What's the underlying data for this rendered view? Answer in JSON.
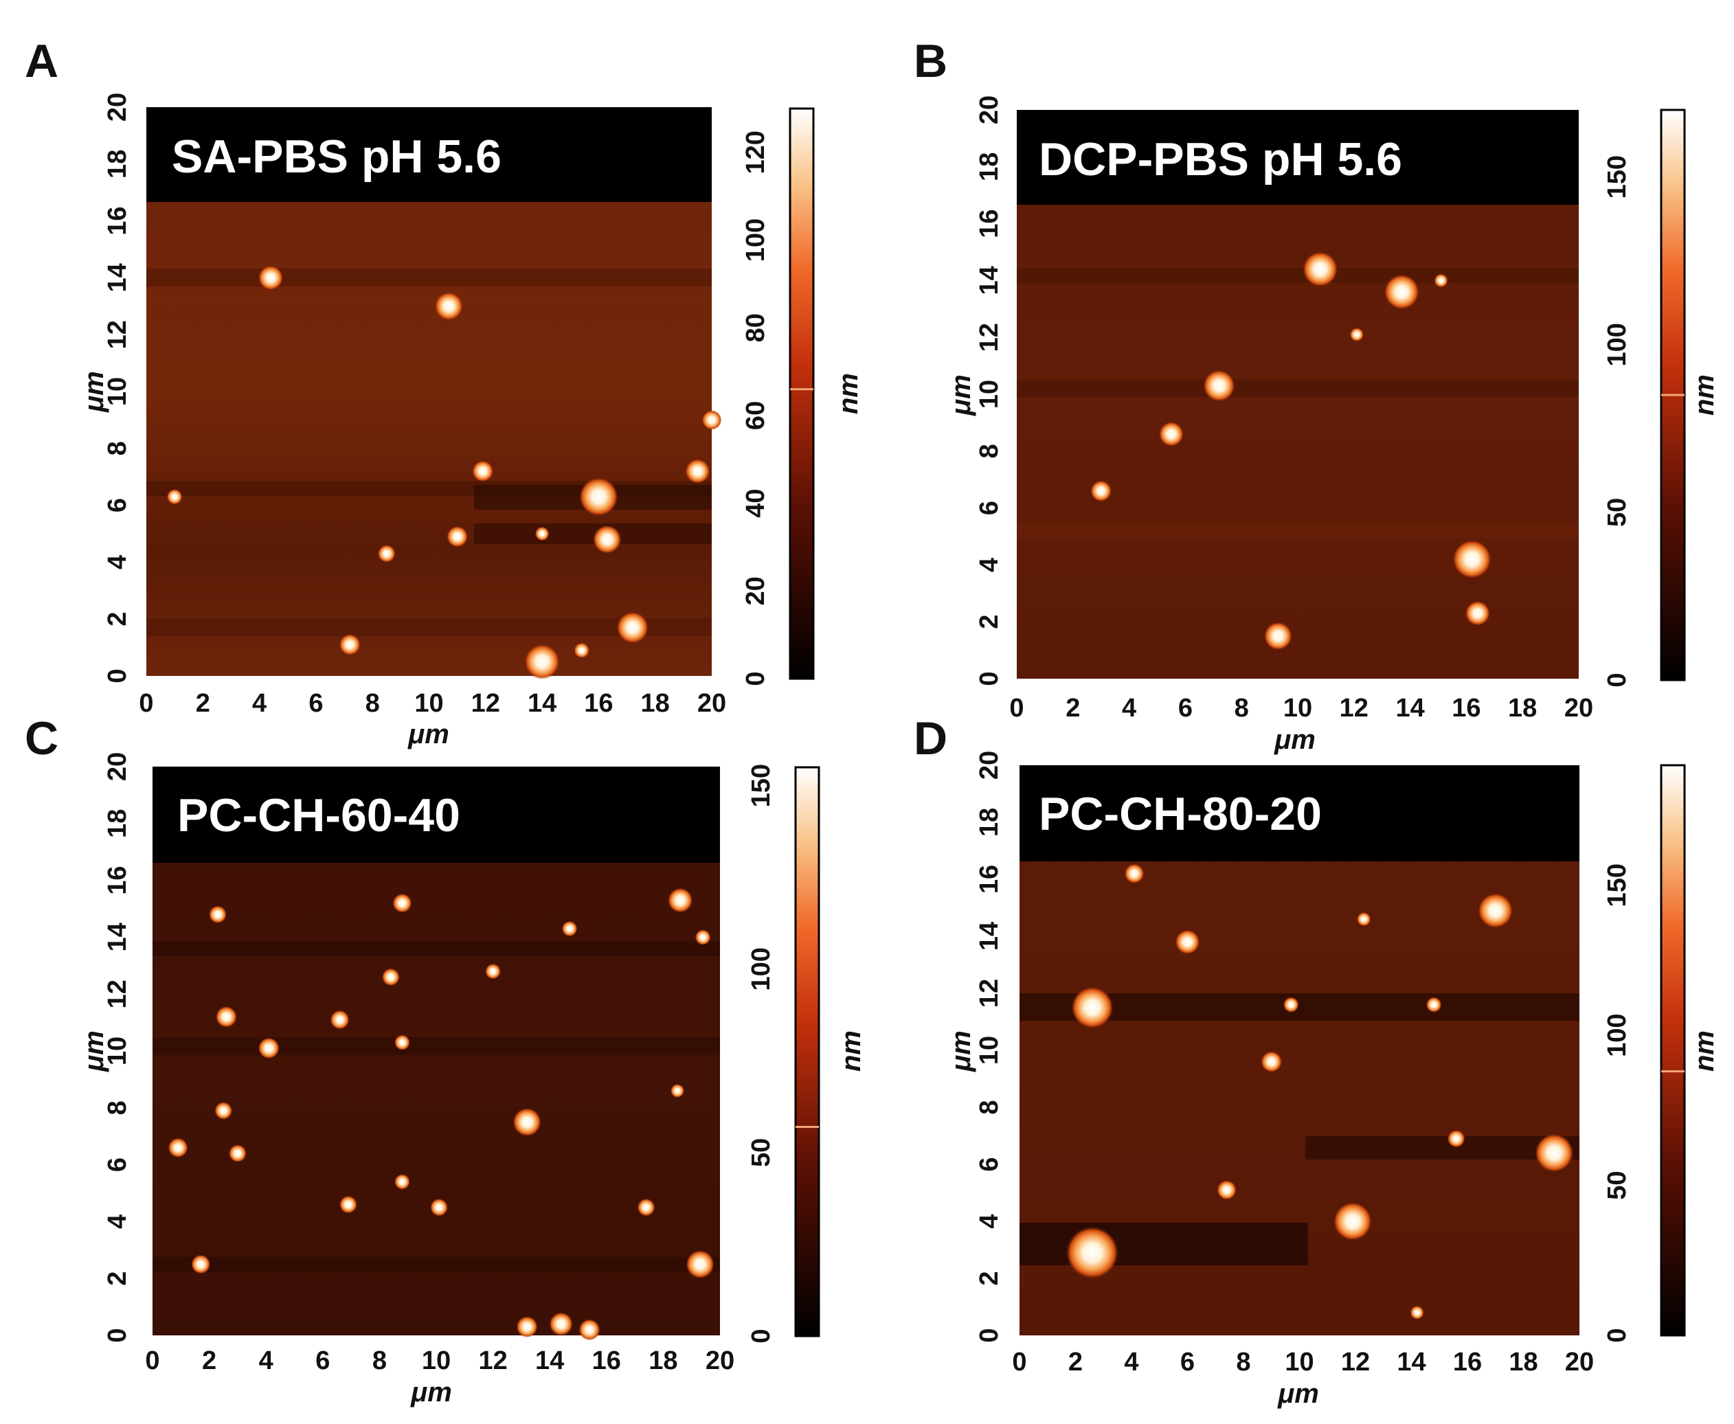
{
  "figure": {
    "panels": [
      {
        "id": "A",
        "label": "A",
        "banner": "SA-PBS pH 5.6",
        "x_ticks": [
          "0",
          "2",
          "4",
          "6",
          "8",
          "10",
          "12",
          "14",
          "16",
          "18",
          "20"
        ],
        "y_ticks": [
          "0",
          "2",
          "4",
          "6",
          "8",
          "10",
          "12",
          "14",
          "16",
          "18",
          "20"
        ],
        "x_axis_label": "μm",
        "y_axis_label": "μm",
        "colorbar_label": "nm",
        "colorbar_ticks": [
          "0",
          "20",
          "40",
          "60",
          "80",
          "100",
          "120"
        ],
        "colorbar_max": 130,
        "colorbar_marker": 66,
        "particles": [
          {
            "x": 4.4,
            "y": 14.0,
            "r": 0.35
          },
          {
            "x": 10.7,
            "y": 13.0,
            "r": 0.4
          },
          {
            "x": 16.0,
            "y": 6.3,
            "r": 0.55
          },
          {
            "x": 16.3,
            "y": 4.8,
            "r": 0.4
          },
          {
            "x": 17.2,
            "y": 1.7,
            "r": 0.45
          },
          {
            "x": 14.0,
            "y": 0.5,
            "r": 0.5
          },
          {
            "x": 11.0,
            "y": 4.9,
            "r": 0.3
          },
          {
            "x": 11.9,
            "y": 7.2,
            "r": 0.3
          },
          {
            "x": 19.5,
            "y": 7.2,
            "r": 0.35
          },
          {
            "x": 20.0,
            "y": 9.0,
            "r": 0.28
          },
          {
            "x": 7.2,
            "y": 1.1,
            "r": 0.3
          },
          {
            "x": 8.5,
            "y": 4.3,
            "r": 0.25
          },
          {
            "x": 14.0,
            "y": 5.0,
            "r": 0.2
          },
          {
            "x": 15.4,
            "y": 0.9,
            "r": 0.22
          },
          {
            "x": 1.0,
            "y": 6.3,
            "r": 0.22
          }
        ]
      },
      {
        "id": "B",
        "label": "B",
        "banner": "DCP-PBS pH 5.6",
        "x_ticks": [
          "0",
          "2",
          "4",
          "6",
          "8",
          "10",
          "12",
          "14",
          "16",
          "18",
          "20"
        ],
        "y_ticks": [
          "0",
          "2",
          "4",
          "6",
          "8",
          "10",
          "12",
          "14",
          "16",
          "18",
          "20"
        ],
        "x_axis_label": "μm",
        "y_axis_label": "μm",
        "colorbar_label": "nm",
        "colorbar_ticks": [
          "0",
          "50",
          "100",
          "150"
        ],
        "colorbar_max": 170,
        "colorbar_marker": 85,
        "particles": [
          {
            "x": 10.8,
            "y": 14.4,
            "r": 0.5
          },
          {
            "x": 13.7,
            "y": 13.6,
            "r": 0.5
          },
          {
            "x": 7.2,
            "y": 10.3,
            "r": 0.45
          },
          {
            "x": 5.5,
            "y": 8.6,
            "r": 0.35
          },
          {
            "x": 3.0,
            "y": 6.6,
            "r": 0.3
          },
          {
            "x": 16.2,
            "y": 4.2,
            "r": 0.55
          },
          {
            "x": 16.4,
            "y": 2.3,
            "r": 0.35
          },
          {
            "x": 9.3,
            "y": 1.5,
            "r": 0.4
          },
          {
            "x": 15.1,
            "y": 14.0,
            "r": 0.18
          },
          {
            "x": 12.1,
            "y": 12.1,
            "r": 0.15
          }
        ]
      },
      {
        "id": "C",
        "label": "C",
        "banner": "PC-CH-60-40",
        "x_ticks": [
          "0",
          "2",
          "4",
          "6",
          "8",
          "10",
          "12",
          "14",
          "16",
          "18",
          "20"
        ],
        "y_ticks": [
          "0",
          "2",
          "4",
          "6",
          "8",
          "10",
          "12",
          "14",
          "16",
          "18",
          "20"
        ],
        "x_axis_label": "μm",
        "y_axis_label": "μm",
        "colorbar_label": "nm",
        "colorbar_ticks": [
          "0",
          "50",
          "100",
          "150"
        ],
        "colorbar_max": 155,
        "colorbar_marker": 57,
        "particles": [
          {
            "x": 2.3,
            "y": 14.8,
            "r": 0.25
          },
          {
            "x": 8.8,
            "y": 15.2,
            "r": 0.27
          },
          {
            "x": 18.6,
            "y": 15.3,
            "r": 0.35
          },
          {
            "x": 19.4,
            "y": 14.0,
            "r": 0.22
          },
          {
            "x": 14.7,
            "y": 14.3,
            "r": 0.22
          },
          {
            "x": 8.4,
            "y": 12.6,
            "r": 0.25
          },
          {
            "x": 12.0,
            "y": 12.8,
            "r": 0.22
          },
          {
            "x": 2.6,
            "y": 11.2,
            "r": 0.3
          },
          {
            "x": 6.6,
            "y": 11.1,
            "r": 0.27
          },
          {
            "x": 4.1,
            "y": 10.1,
            "r": 0.3
          },
          {
            "x": 8.8,
            "y": 10.3,
            "r": 0.22
          },
          {
            "x": 2.5,
            "y": 7.9,
            "r": 0.25
          },
          {
            "x": 13.2,
            "y": 7.5,
            "r": 0.4
          },
          {
            "x": 18.5,
            "y": 8.6,
            "r": 0.18
          },
          {
            "x": 0.9,
            "y": 6.6,
            "r": 0.28
          },
          {
            "x": 3.0,
            "y": 6.4,
            "r": 0.25
          },
          {
            "x": 8.8,
            "y": 5.4,
            "r": 0.22
          },
          {
            "x": 6.9,
            "y": 4.6,
            "r": 0.25
          },
          {
            "x": 10.1,
            "y": 4.5,
            "r": 0.25
          },
          {
            "x": 17.4,
            "y": 4.5,
            "r": 0.25
          },
          {
            "x": 1.7,
            "y": 2.5,
            "r": 0.27
          },
          {
            "x": 19.3,
            "y": 2.5,
            "r": 0.4
          },
          {
            "x": 13.2,
            "y": 0.3,
            "r": 0.3
          },
          {
            "x": 14.4,
            "y": 0.4,
            "r": 0.33
          },
          {
            "x": 15.4,
            "y": 0.2,
            "r": 0.3
          }
        ]
      },
      {
        "id": "D",
        "label": "D",
        "banner": "PC-CH-80-20",
        "x_ticks": [
          "0",
          "2",
          "4",
          "6",
          "8",
          "10",
          "12",
          "14",
          "16",
          "18",
          "20"
        ],
        "y_ticks": [
          "0",
          "2",
          "4",
          "6",
          "8",
          "10",
          "12",
          "14",
          "16",
          "18",
          "20"
        ],
        "x_axis_label": "μm",
        "y_axis_label": "μm",
        "colorbar_label": "nm",
        "colorbar_ticks": [
          "0",
          "50",
          "100",
          "150"
        ],
        "colorbar_max": 190,
        "colorbar_marker": 88,
        "particles": [
          {
            "x": 2.6,
            "y": 11.5,
            "r": 0.6
          },
          {
            "x": 2.6,
            "y": 2.9,
            "r": 0.75
          },
          {
            "x": 11.9,
            "y": 4.0,
            "r": 0.55
          },
          {
            "x": 19.1,
            "y": 6.4,
            "r": 0.55
          },
          {
            "x": 17.0,
            "y": 14.9,
            "r": 0.5
          },
          {
            "x": 6.0,
            "y": 13.8,
            "r": 0.35
          },
          {
            "x": 4.1,
            "y": 16.2,
            "r": 0.28
          },
          {
            "x": 9.0,
            "y": 9.6,
            "r": 0.3
          },
          {
            "x": 7.4,
            "y": 5.1,
            "r": 0.28
          },
          {
            "x": 15.6,
            "y": 6.9,
            "r": 0.25
          },
          {
            "x": 9.7,
            "y": 11.6,
            "r": 0.22
          },
          {
            "x": 14.8,
            "y": 11.6,
            "r": 0.22
          },
          {
            "x": 12.3,
            "y": 14.6,
            "r": 0.2
          },
          {
            "x": 14.2,
            "y": 0.8,
            "r": 0.15
          }
        ]
      }
    ]
  }
}
